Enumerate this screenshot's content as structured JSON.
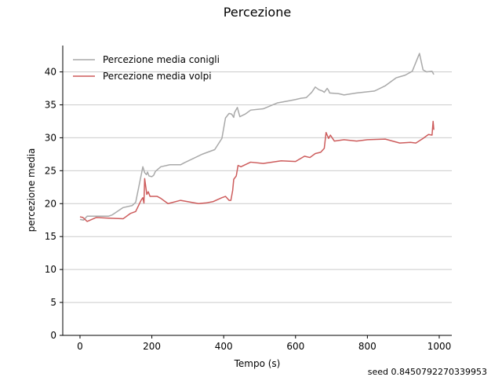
{
  "chart_data": {
    "type": "line",
    "title": "Percezione",
    "xlabel": "Tempo (s)",
    "ylabel": "percezione media",
    "xlim": [
      -48,
      1035
    ],
    "ylim": [
      0,
      44
    ],
    "xticks": [
      0,
      200,
      400,
      600,
      800,
      1000
    ],
    "yticks": [
      0,
      5,
      10,
      15,
      20,
      25,
      30,
      35,
      40
    ],
    "grid": "horizontal",
    "legend_position": "top-left",
    "footnote": "seed 0.8450792270339953",
    "series": [
      {
        "name": "Percezione media conigli",
        "color": "#a9a9a9",
        "points": [
          [
            0,
            17.6
          ],
          [
            10,
            17.5
          ],
          [
            20,
            18.1
          ],
          [
            40,
            18.1
          ],
          [
            80,
            18.1
          ],
          [
            90,
            18.3
          ],
          [
            120,
            19.4
          ],
          [
            145,
            19.7
          ],
          [
            155,
            20.2
          ],
          [
            175,
            25.6
          ],
          [
            180,
            24.7
          ],
          [
            185,
            24.4
          ],
          [
            188,
            24.8
          ],
          [
            192,
            24.2
          ],
          [
            200,
            24.1
          ],
          [
            205,
            24.3
          ],
          [
            210,
            24.9
          ],
          [
            225,
            25.6
          ],
          [
            250,
            25.9
          ],
          [
            280,
            25.9
          ],
          [
            290,
            26.2
          ],
          [
            340,
            27.5
          ],
          [
            375,
            28.2
          ],
          [
            395,
            29.9
          ],
          [
            405,
            33.0
          ],
          [
            415,
            33.7
          ],
          [
            422,
            33.6
          ],
          [
            428,
            33.1
          ],
          [
            430,
            33.8
          ],
          [
            438,
            34.6
          ],
          [
            445,
            33.2
          ],
          [
            460,
            33.6
          ],
          [
            475,
            34.2
          ],
          [
            510,
            34.4
          ],
          [
            550,
            35.3
          ],
          [
            580,
            35.6
          ],
          [
            600,
            35.8
          ],
          [
            615,
            36.0
          ],
          [
            630,
            36.1
          ],
          [
            645,
            36.9
          ],
          [
            655,
            37.7
          ],
          [
            665,
            37.3
          ],
          [
            675,
            37.1
          ],
          [
            680,
            36.9
          ],
          [
            688,
            37.5
          ],
          [
            692,
            37.2
          ],
          [
            695,
            36.8
          ],
          [
            720,
            36.7
          ],
          [
            735,
            36.5
          ],
          [
            770,
            36.8
          ],
          [
            820,
            37.1
          ],
          [
            850,
            37.9
          ],
          [
            880,
            39.1
          ],
          [
            905,
            39.5
          ],
          [
            925,
            40.1
          ],
          [
            945,
            42.8
          ],
          [
            955,
            40.3
          ],
          [
            965,
            40.0
          ],
          [
            980,
            40.1
          ],
          [
            985,
            39.6
          ]
        ]
      },
      {
        "name": "Percezione media volpi",
        "color": "#cd5c5c",
        "points": [
          [
            0,
            18.0
          ],
          [
            8,
            17.9
          ],
          [
            20,
            17.3
          ],
          [
            45,
            17.9
          ],
          [
            80,
            17.8
          ],
          [
            120,
            17.7
          ],
          [
            140,
            18.5
          ],
          [
            155,
            18.8
          ],
          [
            170,
            20.5
          ],
          [
            175,
            20.9
          ],
          [
            178,
            20.1
          ],
          [
            180,
            23.8
          ],
          [
            183,
            22.6
          ],
          [
            186,
            21.4
          ],
          [
            190,
            21.8
          ],
          [
            195,
            21.1
          ],
          [
            215,
            21.1
          ],
          [
            225,
            20.8
          ],
          [
            245,
            20.0
          ],
          [
            280,
            20.5
          ],
          [
            300,
            20.3
          ],
          [
            330,
            20.0
          ],
          [
            350,
            20.1
          ],
          [
            370,
            20.3
          ],
          [
            395,
            20.9
          ],
          [
            405,
            21.1
          ],
          [
            415,
            20.5
          ],
          [
            420,
            20.5
          ],
          [
            425,
            22.0
          ],
          [
            428,
            23.7
          ],
          [
            435,
            24.2
          ],
          [
            440,
            25.8
          ],
          [
            448,
            25.6
          ],
          [
            475,
            26.3
          ],
          [
            510,
            26.1
          ],
          [
            560,
            26.5
          ],
          [
            600,
            26.4
          ],
          [
            625,
            27.2
          ],
          [
            640,
            27.0
          ],
          [
            655,
            27.6
          ],
          [
            670,
            27.8
          ],
          [
            680,
            28.4
          ],
          [
            685,
            30.8
          ],
          [
            692,
            29.9
          ],
          [
            697,
            30.4
          ],
          [
            708,
            29.5
          ],
          [
            735,
            29.7
          ],
          [
            770,
            29.5
          ],
          [
            800,
            29.7
          ],
          [
            850,
            29.8
          ],
          [
            890,
            29.2
          ],
          [
            920,
            29.3
          ],
          [
            935,
            29.2
          ],
          [
            955,
            29.9
          ],
          [
            970,
            30.5
          ],
          [
            980,
            30.4
          ],
          [
            983,
            32.5
          ],
          [
            985,
            31.2
          ]
        ]
      }
    ]
  }
}
